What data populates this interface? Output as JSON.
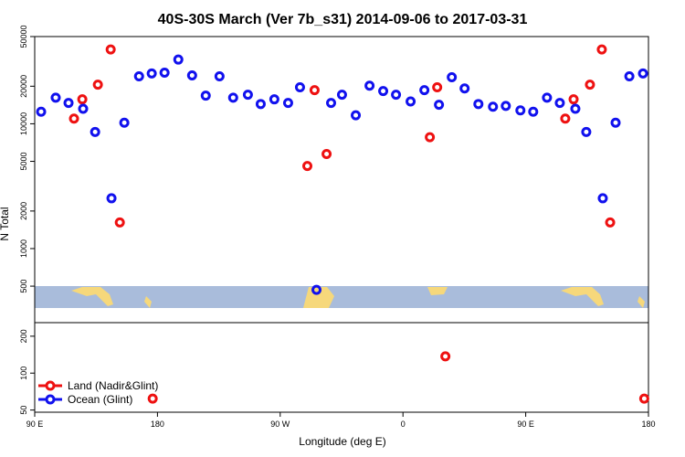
{
  "chart_data": [
    {
      "type": "scatter",
      "title": "40S-30S March (Ver 7b_s31)   2014-09-06 to 2017-03-31",
      "ylabel": "N Total",
      "log_y": true,
      "xlim": [
        90,
        540
      ],
      "ylim": [
        255,
        50000
      ],
      "yticks": [
        500,
        1000,
        2000,
        5000,
        10000,
        20000,
        50000
      ],
      "series": [
        {
          "name": "Land (Nadir&Glint)",
          "color": "#ee1111",
          "x": [
            118.8,
            124.9,
            136.3,
            145.7,
            152.4,
            289.9,
            295.2,
            304.0,
            379.7,
            385.1,
            479.0,
            485.1,
            497.1,
            505.8,
            511.9
          ],
          "values": [
            11000,
            15700,
            20600,
            39400,
            1620,
            4590,
            18600,
            5730,
            7800,
            19600,
            11000,
            15700,
            20600,
            39400,
            1620
          ]
        },
        {
          "name": "Ocean (Glint)",
          "color": "#1111ee",
          "x": [
            94.7,
            105.4,
            114.8,
            125.5,
            134.3,
            146.3,
            155.7,
            166.5,
            175.8,
            185.2,
            195.3,
            205.4,
            215.4,
            225.5,
            235.5,
            246.3,
            255.7,
            265.7,
            275.8,
            284.5,
            296.6,
            307.3,
            315.3,
            325.4,
            335.5,
            345.5,
            354.9,
            365.6,
            375.7,
            386.4,
            395.8,
            405.2,
            415.3,
            426.0,
            435.4,
            446.1,
            455.5,
            465.6,
            475.0,
            486.4,
            494.4,
            506.5,
            515.9,
            526.0,
            536.0
          ],
          "values": [
            12500,
            16200,
            14700,
            13200,
            8600,
            2530,
            10200,
            24000,
            25300,
            25700,
            32700,
            24400,
            16800,
            24000,
            16200,
            17100,
            14400,
            15700,
            14700,
            19600,
            467,
            14700,
            17100,
            11700,
            20200,
            18300,
            17100,
            15100,
            18600,
            14200,
            23600,
            19200,
            14400,
            13700,
            13900,
            12800,
            12500,
            16200,
            14700,
            13200,
            8600,
            2530,
            10200,
            24000,
            25300
          ]
        }
      ]
    },
    {
      "type": "scatter",
      "xlabel": "Longitude (deg E)",
      "log_y": true,
      "xlim": [
        90,
        540
      ],
      "ylim": [
        48,
        258
      ],
      "yticks": [
        50,
        100,
        200
      ],
      "xticks": [
        {
          "value": 90,
          "label": "90 E"
        },
        180,
        {
          "value": 270,
          "label": "90 W"
        },
        {
          "value": 360,
          "label": "0"
        },
        {
          "value": 450,
          "label": "90 E"
        },
        {
          "value": 540,
          "label": "180"
        }
      ],
      "series": [
        {
          "color": "#ee1111",
          "x": [
            176.5,
            391.1,
            536.9
          ],
          "values": [
            62,
            137,
            62
          ]
        }
      ]
    }
  ]
}
